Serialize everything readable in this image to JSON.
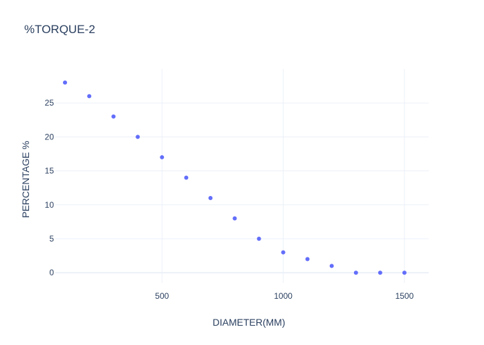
{
  "chart_data": {
    "type": "scatter",
    "title": "%TORQUE-2",
    "xlabel": "DIAMETER(MM)",
    "ylabel": "PERCENTAGE %",
    "xlim": [
      60,
      1600
    ],
    "ylim": [
      -1.5,
      30
    ],
    "x_ticks": [
      500,
      1000,
      1500
    ],
    "y_ticks": [
      0,
      5,
      10,
      15,
      20,
      25
    ],
    "grid": true,
    "marker_color": "#636efa",
    "x": [
      100,
      200,
      300,
      400,
      500,
      600,
      700,
      800,
      900,
      1000,
      1100,
      1200,
      1300,
      1400,
      1500
    ],
    "y": [
      28,
      26,
      23,
      20,
      17,
      14,
      11,
      8,
      5,
      3,
      2,
      1,
      0,
      0,
      0
    ]
  }
}
